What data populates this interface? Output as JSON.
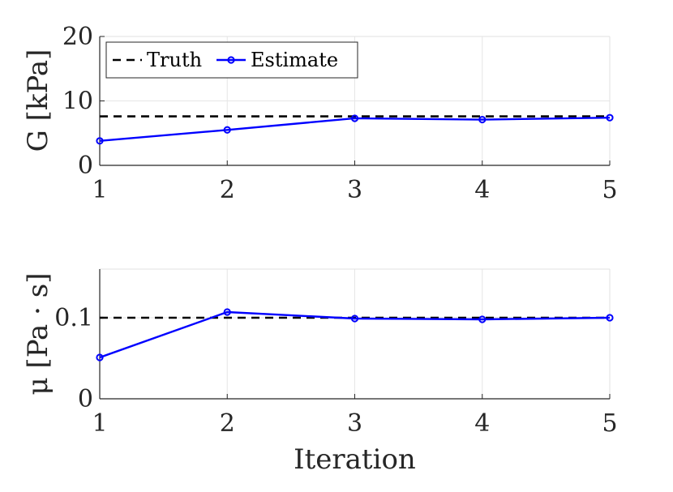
{
  "chart_data": [
    {
      "type": "line",
      "ylabel": "G [kPa]",
      "xlabel": "",
      "xlim": [
        1,
        5
      ],
      "ylim": [
        0,
        20
      ],
      "xticks": [
        "1",
        "2",
        "3",
        "4",
        "5"
      ],
      "yticks": [
        "0",
        "10",
        "20"
      ],
      "grid": true,
      "legend": "top-left",
      "series": [
        {
          "name": "Truth",
          "style": "dashed",
          "color": "#000000",
          "x": [
            1,
            5
          ],
          "y": [
            7.6,
            7.6
          ]
        },
        {
          "name": "Estimate",
          "style": "solid-circle-markers",
          "color": "#0000ff",
          "x": [
            1,
            2,
            3,
            4,
            5
          ],
          "y": [
            3.8,
            5.5,
            7.3,
            7.1,
            7.4
          ]
        }
      ]
    },
    {
      "type": "line",
      "ylabel": "μ [Pa · s]",
      "xlabel": "Iteration",
      "xlim": [
        1,
        5
      ],
      "ylim": [
        0,
        0.16
      ],
      "xticks": [
        "1",
        "2",
        "3",
        "4",
        "5"
      ],
      "yticks": [
        "0",
        "0.1"
      ],
      "grid": true,
      "series": [
        {
          "name": "Truth",
          "style": "dashed",
          "color": "#000000",
          "x": [
            1,
            5
          ],
          "y": [
            0.1,
            0.1
          ]
        },
        {
          "name": "Estimate",
          "style": "solid-circle-markers",
          "color": "#0000ff",
          "x": [
            1,
            2,
            3,
            4,
            5
          ],
          "y": [
            0.051,
            0.107,
            0.099,
            0.098,
            0.1
          ]
        }
      ]
    }
  ]
}
